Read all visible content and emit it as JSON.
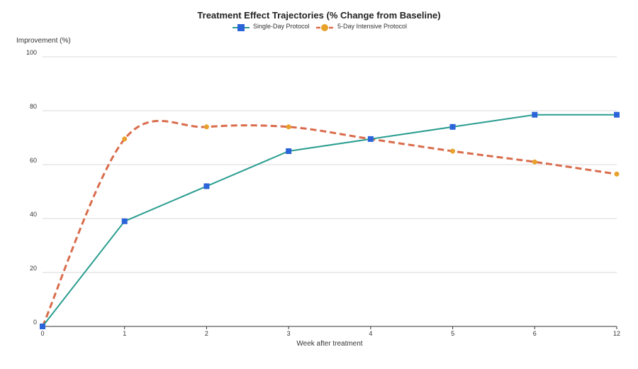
{
  "chart_data": {
    "type": "line",
    "title": "Treatment Effect Trajectories (% Change from Baseline)",
    "xlabel": "Week after treatment",
    "ylabel": "Improvement (%)",
    "categories": [
      "0",
      "1",
      "2",
      "3",
      "4",
      "5",
      "6",
      "12"
    ],
    "ylim": [
      0,
      100
    ],
    "yticks": [
      0,
      20,
      40,
      60,
      80,
      100
    ],
    "grid": true,
    "legend_position": "top-center",
    "series": [
      {
        "name": "Single-Day Protocol",
        "values": [
          0,
          39,
          52,
          65,
          69.5,
          74,
          78.5,
          78.5
        ],
        "line_color": "#2a9d8f",
        "marker_color": "#2b63d9",
        "marker": "square",
        "line_style": "solid",
        "smooth": false
      },
      {
        "name": "5-Day Intensive Protocol",
        "values": [
          0,
          69.5,
          74,
          74,
          69.5,
          65,
          61,
          56.5
        ],
        "line_color": "#d96c4c",
        "marker_color": "#e8a22b",
        "marker": "circle",
        "line_style": "dashed",
        "smooth": true
      }
    ]
  }
}
